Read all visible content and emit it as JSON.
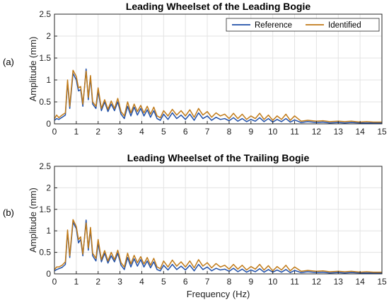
{
  "figure": {
    "xlabel": "Frequency (Hz)"
  },
  "chart_data": [
    {
      "type": "line",
      "panel_tag": "(a)",
      "title": "Leading Wheelset of the Leading Bogie",
      "xlabel": "",
      "ylabel": "Amplitude (mm)",
      "xlim": [
        0,
        15
      ],
      "ylim": [
        0,
        2.5
      ],
      "xticks": [
        0,
        1,
        2,
        3,
        4,
        5,
        6,
        7,
        8,
        9,
        10,
        11,
        12,
        13,
        14,
        15
      ],
      "yticks": [
        0,
        0.5,
        1,
        1.5,
        2,
        2.5
      ],
      "grid": true,
      "legend_position": "top-right",
      "x": [
        0,
        0.1,
        0.2,
        0.35,
        0.5,
        0.6,
        0.7,
        0.85,
        1.0,
        1.1,
        1.2,
        1.3,
        1.45,
        1.55,
        1.65,
        1.75,
        1.9,
        2.0,
        2.15,
        2.3,
        2.45,
        2.6,
        2.75,
        2.9,
        3.05,
        3.2,
        3.35,
        3.5,
        3.65,
        3.8,
        3.95,
        4.1,
        4.25,
        4.4,
        4.55,
        4.7,
        4.85,
        5.0,
        5.2,
        5.4,
        5.6,
        5.8,
        6.0,
        6.2,
        6.4,
        6.6,
        6.8,
        7.0,
        7.2,
        7.4,
        7.6,
        7.8,
        8.0,
        8.2,
        8.4,
        8.6,
        8.8,
        9.0,
        9.2,
        9.4,
        9.6,
        9.8,
        10.0,
        10.2,
        10.4,
        10.6,
        10.8,
        11.0,
        11.3,
        11.6,
        12.0,
        12.3,
        12.6,
        13.0,
        13.3,
        13.6,
        14.0,
        14.3,
        14.6,
        15.0
      ],
      "series": [
        {
          "name": "Reference",
          "color": "#1f4fa8",
          "values": [
            0.08,
            0.12,
            0.1,
            0.15,
            0.2,
            0.95,
            0.35,
            1.15,
            1.0,
            0.75,
            0.78,
            0.4,
            1.25,
            0.55,
            1.05,
            0.45,
            0.35,
            0.75,
            0.3,
            0.5,
            0.28,
            0.45,
            0.3,
            0.5,
            0.22,
            0.12,
            0.4,
            0.18,
            0.38,
            0.2,
            0.35,
            0.18,
            0.32,
            0.15,
            0.3,
            0.12,
            0.08,
            0.22,
            0.1,
            0.25,
            0.12,
            0.2,
            0.1,
            0.22,
            0.08,
            0.25,
            0.12,
            0.18,
            0.08,
            0.15,
            0.1,
            0.12,
            0.07,
            0.14,
            0.06,
            0.12,
            0.05,
            0.1,
            0.06,
            0.14,
            0.05,
            0.12,
            0.04,
            0.1,
            0.05,
            0.12,
            0.04,
            0.09,
            0.03,
            0.05,
            0.03,
            0.04,
            0.02,
            0.03,
            0.02,
            0.03,
            0.02,
            0.02,
            0.02,
            0.02
          ]
        },
        {
          "name": "Identified",
          "color": "#c07a18",
          "values": [
            0.12,
            0.2,
            0.14,
            0.2,
            0.25,
            1.0,
            0.4,
            1.22,
            1.08,
            0.82,
            0.85,
            0.45,
            1.2,
            0.6,
            1.1,
            0.5,
            0.4,
            0.82,
            0.35,
            0.55,
            0.33,
            0.52,
            0.35,
            0.58,
            0.28,
            0.18,
            0.5,
            0.25,
            0.45,
            0.28,
            0.42,
            0.25,
            0.4,
            0.22,
            0.38,
            0.18,
            0.14,
            0.3,
            0.18,
            0.33,
            0.2,
            0.3,
            0.18,
            0.32,
            0.15,
            0.35,
            0.2,
            0.28,
            0.15,
            0.25,
            0.18,
            0.22,
            0.12,
            0.24,
            0.12,
            0.22,
            0.1,
            0.18,
            0.12,
            0.24,
            0.1,
            0.2,
            0.08,
            0.18,
            0.1,
            0.22,
            0.08,
            0.18,
            0.06,
            0.08,
            0.06,
            0.07,
            0.05,
            0.06,
            0.05,
            0.06,
            0.04,
            0.05,
            0.04,
            0.04
          ]
        }
      ]
    },
    {
      "type": "line",
      "panel_tag": "(b)",
      "title": "Leading Wheelset of the Trailing Bogie",
      "xlabel": "Frequency (Hz)",
      "ylabel": "Amplitude (mm)",
      "xlim": [
        0,
        15
      ],
      "ylim": [
        0,
        2.5
      ],
      "xticks": [
        0,
        1,
        2,
        3,
        4,
        5,
        6,
        7,
        8,
        9,
        10,
        11,
        12,
        13,
        14,
        15
      ],
      "yticks": [
        0,
        0.5,
        1,
        1.5,
        2,
        2.5
      ],
      "grid": true,
      "x": [
        0,
        0.1,
        0.2,
        0.35,
        0.5,
        0.6,
        0.7,
        0.85,
        1.0,
        1.1,
        1.2,
        1.3,
        1.45,
        1.55,
        1.65,
        1.75,
        1.9,
        2.0,
        2.15,
        2.3,
        2.45,
        2.6,
        2.75,
        2.9,
        3.05,
        3.2,
        3.35,
        3.5,
        3.65,
        3.8,
        3.95,
        4.1,
        4.25,
        4.4,
        4.55,
        4.7,
        4.85,
        5.0,
        5.2,
        5.4,
        5.6,
        5.8,
        6.0,
        6.2,
        6.4,
        6.6,
        6.8,
        7.0,
        7.2,
        7.4,
        7.6,
        7.8,
        8.0,
        8.2,
        8.4,
        8.6,
        8.8,
        9.0,
        9.2,
        9.4,
        9.6,
        9.8,
        10.0,
        10.2,
        10.4,
        10.6,
        10.8,
        11.0,
        11.3,
        11.6,
        12.0,
        12.3,
        12.6,
        13.0,
        13.3,
        13.6,
        14.0,
        14.3,
        14.6,
        15.0
      ],
      "series": [
        {
          "name": "Reference",
          "color": "#1f4fa8",
          "values": [
            0.07,
            0.1,
            0.12,
            0.15,
            0.22,
            0.98,
            0.38,
            1.2,
            1.05,
            0.72,
            0.8,
            0.42,
            1.25,
            0.55,
            1.02,
            0.42,
            0.3,
            0.72,
            0.28,
            0.48,
            0.25,
            0.42,
            0.28,
            0.48,
            0.2,
            0.1,
            0.38,
            0.16,
            0.35,
            0.18,
            0.33,
            0.16,
            0.3,
            0.14,
            0.28,
            0.1,
            0.07,
            0.2,
            0.09,
            0.22,
            0.1,
            0.18,
            0.09,
            0.2,
            0.07,
            0.22,
            0.1,
            0.16,
            0.07,
            0.13,
            0.09,
            0.11,
            0.06,
            0.13,
            0.05,
            0.11,
            0.04,
            0.09,
            0.05,
            0.12,
            0.04,
            0.1,
            0.04,
            0.09,
            0.04,
            0.1,
            0.03,
            0.08,
            0.03,
            0.05,
            0.03,
            0.04,
            0.02,
            0.03,
            0.02,
            0.03,
            0.02,
            0.02,
            0.02,
            0.02
          ]
        },
        {
          "name": "Identified",
          "color": "#c07a18",
          "values": [
            0.1,
            0.16,
            0.16,
            0.2,
            0.28,
            1.02,
            0.42,
            1.26,
            1.1,
            0.8,
            0.86,
            0.46,
            1.18,
            0.6,
            1.08,
            0.48,
            0.36,
            0.8,
            0.33,
            0.54,
            0.3,
            0.5,
            0.33,
            0.55,
            0.26,
            0.16,
            0.48,
            0.23,
            0.43,
            0.26,
            0.4,
            0.23,
            0.38,
            0.2,
            0.36,
            0.16,
            0.12,
            0.3,
            0.16,
            0.32,
            0.18,
            0.28,
            0.16,
            0.3,
            0.14,
            0.33,
            0.18,
            0.26,
            0.14,
            0.24,
            0.16,
            0.2,
            0.11,
            0.22,
            0.11,
            0.2,
            0.09,
            0.17,
            0.11,
            0.22,
            0.09,
            0.19,
            0.07,
            0.17,
            0.09,
            0.2,
            0.07,
            0.16,
            0.06,
            0.08,
            0.06,
            0.07,
            0.05,
            0.06,
            0.05,
            0.06,
            0.04,
            0.05,
            0.04,
            0.04
          ]
        }
      ]
    }
  ]
}
